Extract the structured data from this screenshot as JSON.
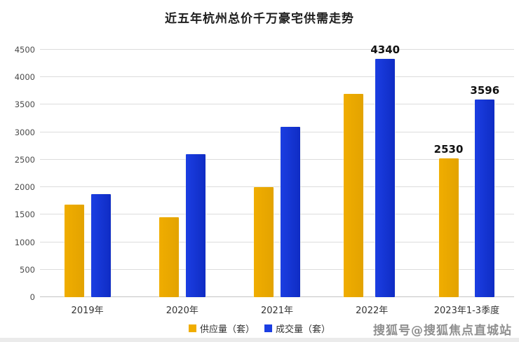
{
  "watermark": {
    "text": "搜狐号@搜狐焦点直城站"
  },
  "chart_data": {
    "type": "bar",
    "title": "近五年杭州总价千万豪宅供需走势",
    "categories": [
      "2019年",
      "2020年",
      "2021年",
      "2022年",
      "2023年1-3季度"
    ],
    "series": [
      {
        "name": "供应量（套）",
        "color": "#f0ad00",
        "color2": "#e3a300",
        "values": [
          1680,
          1450,
          2000,
          3700,
          2530
        ],
        "shown_labels": [
          null,
          null,
          null,
          null,
          "2530"
        ]
      },
      {
        "name": "成交量（套）",
        "color": "#1b3ee2",
        "color2": "#0f2cc4",
        "values": [
          1870,
          2600,
          3100,
          4340,
          3596
        ],
        "shown_labels": [
          null,
          null,
          null,
          "4340",
          "3596"
        ]
      }
    ],
    "ylim": [
      0,
      4500
    ],
    "ytick_step": 500,
    "grid": true,
    "legend_position": "bottom"
  }
}
